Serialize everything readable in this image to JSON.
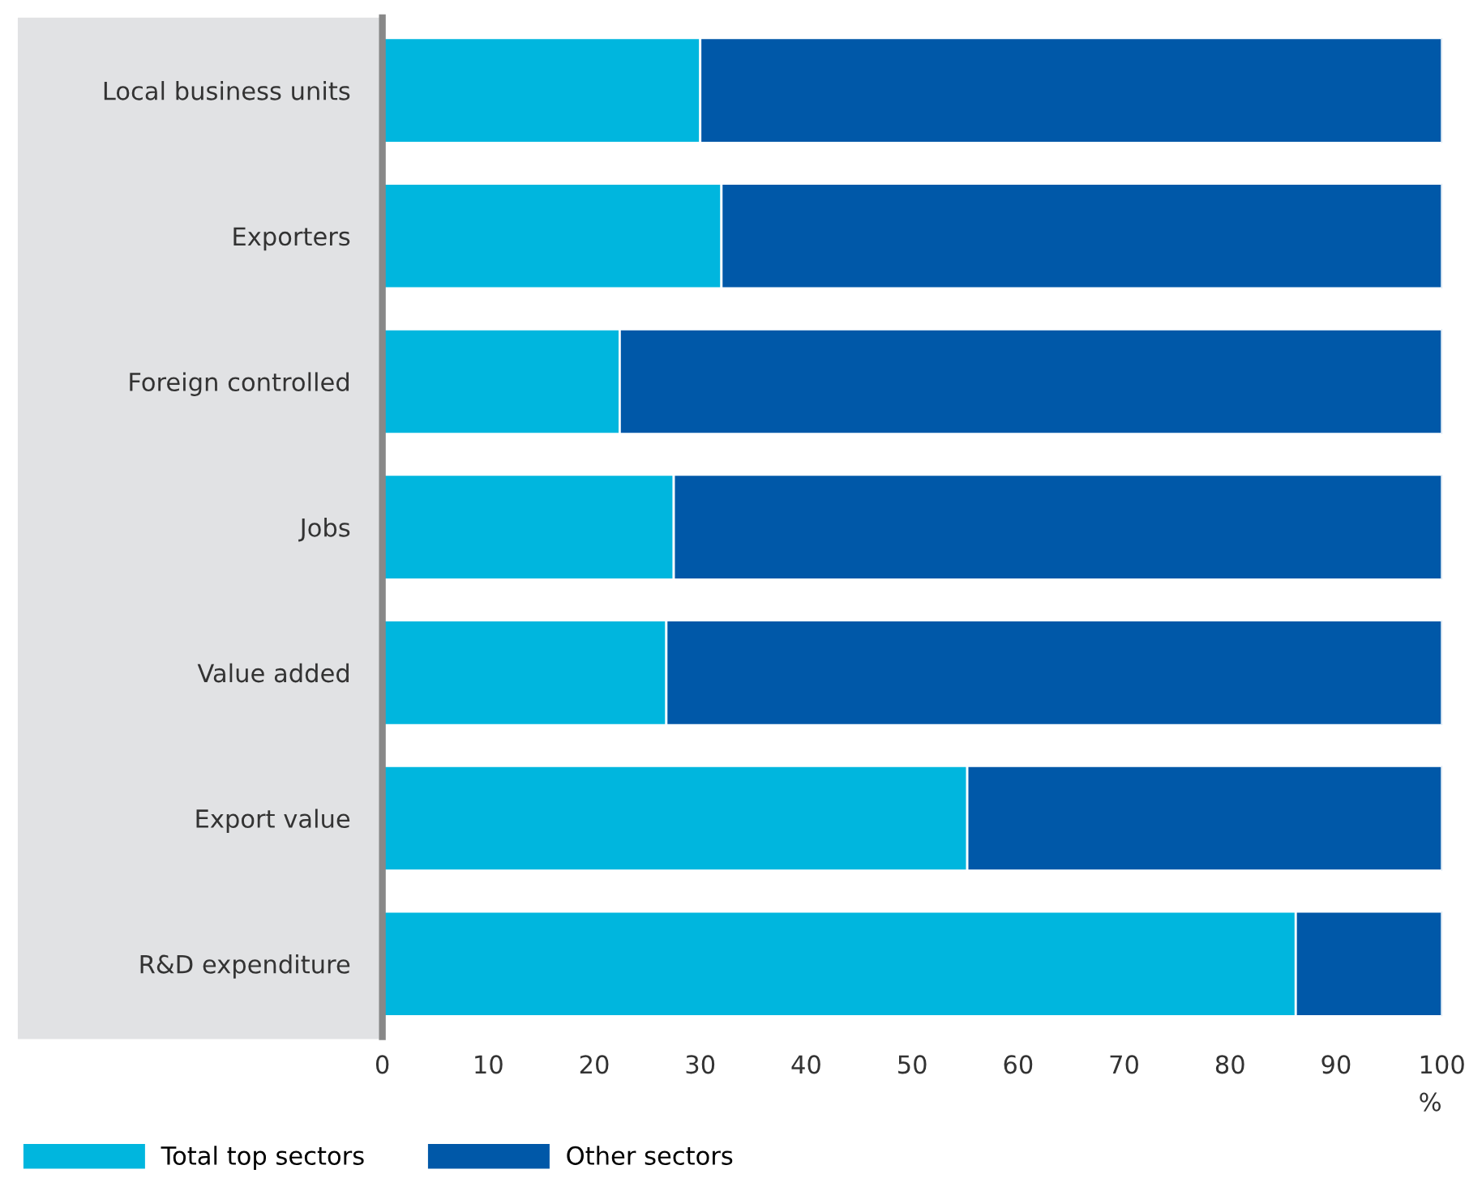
{
  "chart_data": {
    "type": "bar",
    "orientation": "horizontal",
    "stacked": true,
    "categories": [
      "Local business units",
      "Exporters",
      "Foreign controlled",
      "Jobs",
      "Value added",
      "Export value",
      "R&D expenditure"
    ],
    "series": [
      {
        "name": "Total top sectors",
        "color": "#00b6de",
        "values": [
          30,
          32,
          22.4,
          27.5,
          26.8,
          55.2,
          86.2
        ]
      },
      {
        "name": "Other sectors",
        "color": "#0058a8",
        "values": [
          70,
          68,
          77.6,
          72.5,
          73.2,
          44.8,
          13.8
        ]
      }
    ],
    "xlabel": "%",
    "xlim": [
      0,
      100
    ],
    "xticks": [
      0,
      10,
      20,
      30,
      40,
      50,
      60,
      70,
      80,
      90,
      100
    ],
    "grid": false,
    "legend": "bottom left"
  }
}
